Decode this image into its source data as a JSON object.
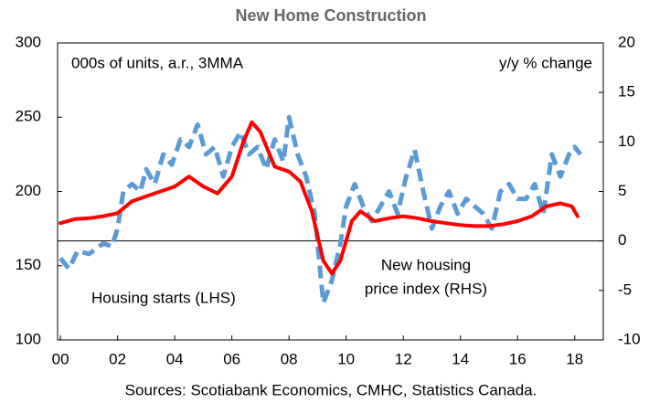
{
  "chart_data": {
    "type": "line",
    "title": "New Home Construction",
    "annotations": [
      "000s of units, a.r., 3MMA",
      "y/y % change",
      "Housing starts (LHS)",
      "New housing",
      "price index (RHS)"
    ],
    "source": "Sources: Scotiabank Economics, CMHC, Statistics Canada.",
    "xlim": [
      1999.9,
      2019
    ],
    "xticks": [
      {
        "value": 2000,
        "label": "00"
      },
      {
        "value": 2002,
        "label": "02"
      },
      {
        "value": 2004,
        "label": "04"
      },
      {
        "value": 2006,
        "label": "06"
      },
      {
        "value": 2008,
        "label": "08"
      },
      {
        "value": 2010,
        "label": "10"
      },
      {
        "value": 2012,
        "label": "12"
      },
      {
        "value": 2014,
        "label": "14"
      },
      {
        "value": 2016,
        "label": "16"
      },
      {
        "value": 2018,
        "label": "18"
      }
    ],
    "ylim": [
      100,
      300
    ],
    "yticks": [
      100,
      150,
      200,
      250,
      300
    ],
    "y2lim": [
      -10,
      20
    ],
    "y2ticks": [
      -10,
      -5,
      0,
      5,
      10,
      15,
      20
    ],
    "zero_line": true,
    "series": [
      {
        "name": "Housing starts (LHS)",
        "color": "#5b9bd5",
        "dashed": true,
        "x": [
          2000.0,
          2000.3,
          2000.6,
          2001.0,
          2001.5,
          2001.8,
          2002.0,
          2002.2,
          2002.5,
          2002.8,
          2003.0,
          2003.3,
          2003.6,
          2003.9,
          2004.2,
          2004.5,
          2004.8,
          2005.1,
          2005.4,
          2005.7,
          2006.0,
          2006.3,
          2006.6,
          2006.9,
          2007.2,
          2007.5,
          2007.8,
          2008.0,
          2008.3,
          2008.6,
          2008.9,
          2009.2,
          2009.5,
          2009.8,
          2010.0,
          2010.3,
          2010.6,
          2010.9,
          2011.2,
          2011.5,
          2011.8,
          2012.1,
          2012.4,
          2012.7,
          2013.0,
          2013.3,
          2013.6,
          2013.9,
          2014.2,
          2014.5,
          2014.8,
          2015.1,
          2015.4,
          2015.7,
          2016.0,
          2016.3,
          2016.6,
          2016.9,
          2017.2,
          2017.5,
          2017.8,
          2018.0,
          2018.2
        ],
        "values": [
          155,
          148,
          160,
          158,
          165,
          163,
          175,
          200,
          205,
          200,
          215,
          205,
          225,
          218,
          235,
          230,
          245,
          225,
          230,
          210,
          230,
          240,
          225,
          230,
          215,
          235,
          220,
          250,
          225,
          210,
          185,
          125,
          140,
          165,
          190,
          205,
          190,
          180,
          190,
          200,
          185,
          210,
          228,
          200,
          175,
          190,
          200,
          185,
          195,
          190,
          185,
          175,
          200,
          205,
          195,
          195,
          205,
          185,
          225,
          210,
          225,
          230,
          225
        ]
      },
      {
        "name": "New housing price index (RHS)",
        "color": "#ff0000",
        "axis": "y2",
        "x": [
          2000.0,
          2000.5,
          2001.0,
          2001.5,
          2002.0,
          2002.5,
          2003.0,
          2003.5,
          2004.0,
          2004.5,
          2005.0,
          2005.5,
          2006.0,
          2006.4,
          2006.7,
          2007.0,
          2007.5,
          2008.0,
          2008.4,
          2008.8,
          2009.2,
          2009.5,
          2009.8,
          2010.2,
          2010.5,
          2011.0,
          2011.5,
          2012.0,
          2012.5,
          2013.0,
          2013.5,
          2014.0,
          2014.5,
          2015.0,
          2015.5,
          2016.0,
          2016.5,
          2017.0,
          2017.5,
          2017.9,
          2018.1
        ],
        "values": [
          1.8,
          2.2,
          2.3,
          2.5,
          2.8,
          4,
          4.5,
          5,
          5.5,
          6.5,
          5.5,
          4.8,
          6.5,
          10,
          12,
          11,
          7.5,
          7,
          6,
          3,
          -2,
          -3.3,
          -2,
          2,
          3,
          2,
          2.3,
          2.5,
          2.3,
          2,
          1.8,
          1.6,
          1.5,
          1.5,
          1.7,
          2,
          2.5,
          3.5,
          3.8,
          3.5,
          2.5
        ]
      }
    ]
  }
}
